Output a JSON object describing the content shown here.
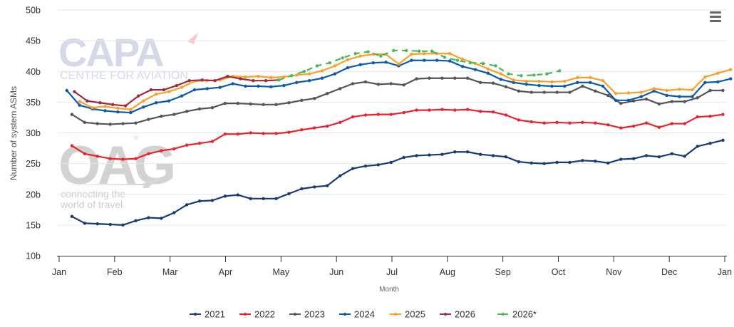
{
  "chart_data": {
    "type": "line",
    "title": "",
    "xlabel": "Month",
    "ylabel": "Number of system ASMs",
    "ylim": [
      10,
      50
    ],
    "yticks": [
      "10b",
      "15b",
      "20b",
      "25b",
      "30b",
      "35b",
      "40b",
      "45b",
      "50b"
    ],
    "ytick_values": [
      10,
      15,
      20,
      25,
      30,
      35,
      40,
      45,
      50
    ],
    "xticks": [
      "Jan",
      "Feb",
      "Mar",
      "Apr",
      "May",
      "Jun",
      "Jul",
      "Aug",
      "Sep",
      "Oct",
      "Nov",
      "Dec",
      "Jan"
    ],
    "x_unit": "week of year (1-53)",
    "grid": true,
    "legend_position": "bottom-center",
    "series": [
      {
        "name": "2021",
        "color": "#1b3a73",
        "dashed": false,
        "start_week": 1,
        "values": [
          16.4,
          15.3,
          15.2,
          15.1,
          15.0,
          15.7,
          16.2,
          16.1,
          17.0,
          18.3,
          18.9,
          19.0,
          19.7,
          19.9,
          19.3,
          19.3,
          19.3,
          20.1,
          20.9,
          21.2,
          21.4,
          23.0,
          24.2,
          24.6,
          24.8,
          25.2,
          26.0,
          26.3,
          26.4,
          26.5,
          26.9,
          26.9,
          26.5,
          26.3,
          26.1,
          25.3,
          25.1,
          25.0,
          25.2,
          25.2,
          25.5,
          25.4,
          25.1,
          25.7,
          25.8,
          26.3,
          26.1,
          26.6,
          26.2,
          27.8,
          28.3,
          28.8
        ]
      },
      {
        "name": "2022",
        "color": "#e8232e",
        "dashed": false,
        "start_week": 1,
        "values": [
          27.9,
          26.6,
          26.2,
          25.8,
          25.7,
          25.8,
          26.6,
          27.1,
          27.4,
          28.0,
          28.3,
          28.6,
          29.8,
          29.8,
          30.0,
          29.9,
          29.9,
          30.1,
          30.5,
          30.8,
          31.1,
          31.7,
          32.6,
          32.9,
          33.0,
          33.0,
          33.3,
          33.7,
          33.7,
          33.8,
          33.7,
          33.8,
          33.5,
          33.4,
          32.9,
          32.1,
          31.8,
          31.6,
          31.7,
          31.6,
          31.7,
          31.6,
          31.3,
          30.8,
          31.1,
          31.6,
          30.9,
          31.5,
          31.5,
          32.6,
          32.7,
          33.0
        ]
      },
      {
        "name": "2023",
        "color": "#555555",
        "dashed": false,
        "start_week": 1,
        "values": [
          33.0,
          31.7,
          31.5,
          31.4,
          31.5,
          31.6,
          32.2,
          32.7,
          33.0,
          33.5,
          33.9,
          34.1,
          34.8,
          34.8,
          34.7,
          34.6,
          34.6,
          34.9,
          35.3,
          35.6,
          36.4,
          37.2,
          38.0,
          38.3,
          37.9,
          38.0,
          37.8,
          38.8,
          38.9,
          38.9,
          38.9,
          38.9,
          38.2,
          38.1,
          37.5,
          36.8,
          36.6,
          36.6,
          36.6,
          36.6,
          37.6,
          36.8,
          36.1,
          34.8,
          35.2,
          35.5,
          34.7,
          35.1,
          35.1,
          35.7,
          36.9,
          36.9
        ]
      },
      {
        "name": "2024",
        "color": "#0c5aa6",
        "dashed": false,
        "start_week": 0.6,
        "values": [
          36.9,
          34.5,
          33.9,
          33.6,
          33.4,
          33.3,
          34.2,
          34.9,
          35.2,
          36.0,
          37.0,
          37.2,
          37.4,
          38.0,
          37.6,
          37.6,
          37.5,
          37.7,
          38.2,
          38.5,
          38.9,
          39.6,
          40.6,
          41.1,
          41.4,
          41.5,
          40.9,
          41.8,
          41.8,
          41.8,
          41.7,
          40.8,
          40.3,
          39.7,
          38.7,
          38.2,
          37.9,
          37.7,
          37.6,
          37.6,
          38.2,
          38.2,
          37.6,
          35.3,
          35.3,
          35.9,
          36.8,
          36.1,
          35.9,
          35.9,
          38.2,
          38.3,
          38.8
        ]
      },
      {
        "name": "2025",
        "color": "#f7a12c",
        "dashed": false,
        "start_week": 1.6,
        "values": [
          35.1,
          34.1,
          34.3,
          34.0,
          33.8,
          35.2,
          36.3,
          36.7,
          37.4,
          38.4,
          38.5,
          38.6,
          39.2,
          39.1,
          39.2,
          39.0,
          39.1,
          39.4,
          39.6,
          40.1,
          40.9,
          41.9,
          42.5,
          42.8,
          42.8,
          41.2,
          42.8,
          42.9,
          42.9,
          42.9,
          42.0,
          41.3,
          40.4,
          39.6,
          38.6,
          38.4,
          38.4,
          38.3,
          38.4,
          39.0,
          39.0,
          38.5,
          36.4,
          36.5,
          36.6,
          37.2,
          36.9,
          37.1,
          37.0,
          39.1,
          39.7,
          40.3
        ]
      },
      {
        "name": "2026",
        "color": "#9b2b3e",
        "dashed": false,
        "start_week": 1.2,
        "values": [
          36.7,
          35.2,
          34.9,
          34.6,
          34.4,
          36.0,
          37.0,
          37.0,
          37.7,
          38.5,
          38.6,
          38.5,
          39.2,
          38.8,
          38.5,
          38.5,
          38.6
        ]
      },
      {
        "name": "2026*",
        "color": "#4cb75a",
        "dashed": true,
        "start_week": 17.2,
        "values": [
          38.6,
          39.3,
          40.0,
          40.9,
          41.4,
          42.2,
          42.9,
          43.2,
          42.5,
          43.4,
          43.4,
          43.3,
          43.3,
          42.3,
          41.8,
          41.4,
          41.3,
          40.9,
          39.6,
          39.3,
          39.4,
          39.6,
          40.1
        ]
      }
    ]
  },
  "watermarks": {
    "capa_logo": "CAPA",
    "capa_sub": "CENTRE FOR AVIATION",
    "oac_logo": "OAG",
    "oac_registered": "®",
    "oac_sub_line1": "connecting the",
    "oac_sub_line2": "world of travel"
  },
  "menu": {
    "icon": "hamburger-menu-icon"
  }
}
